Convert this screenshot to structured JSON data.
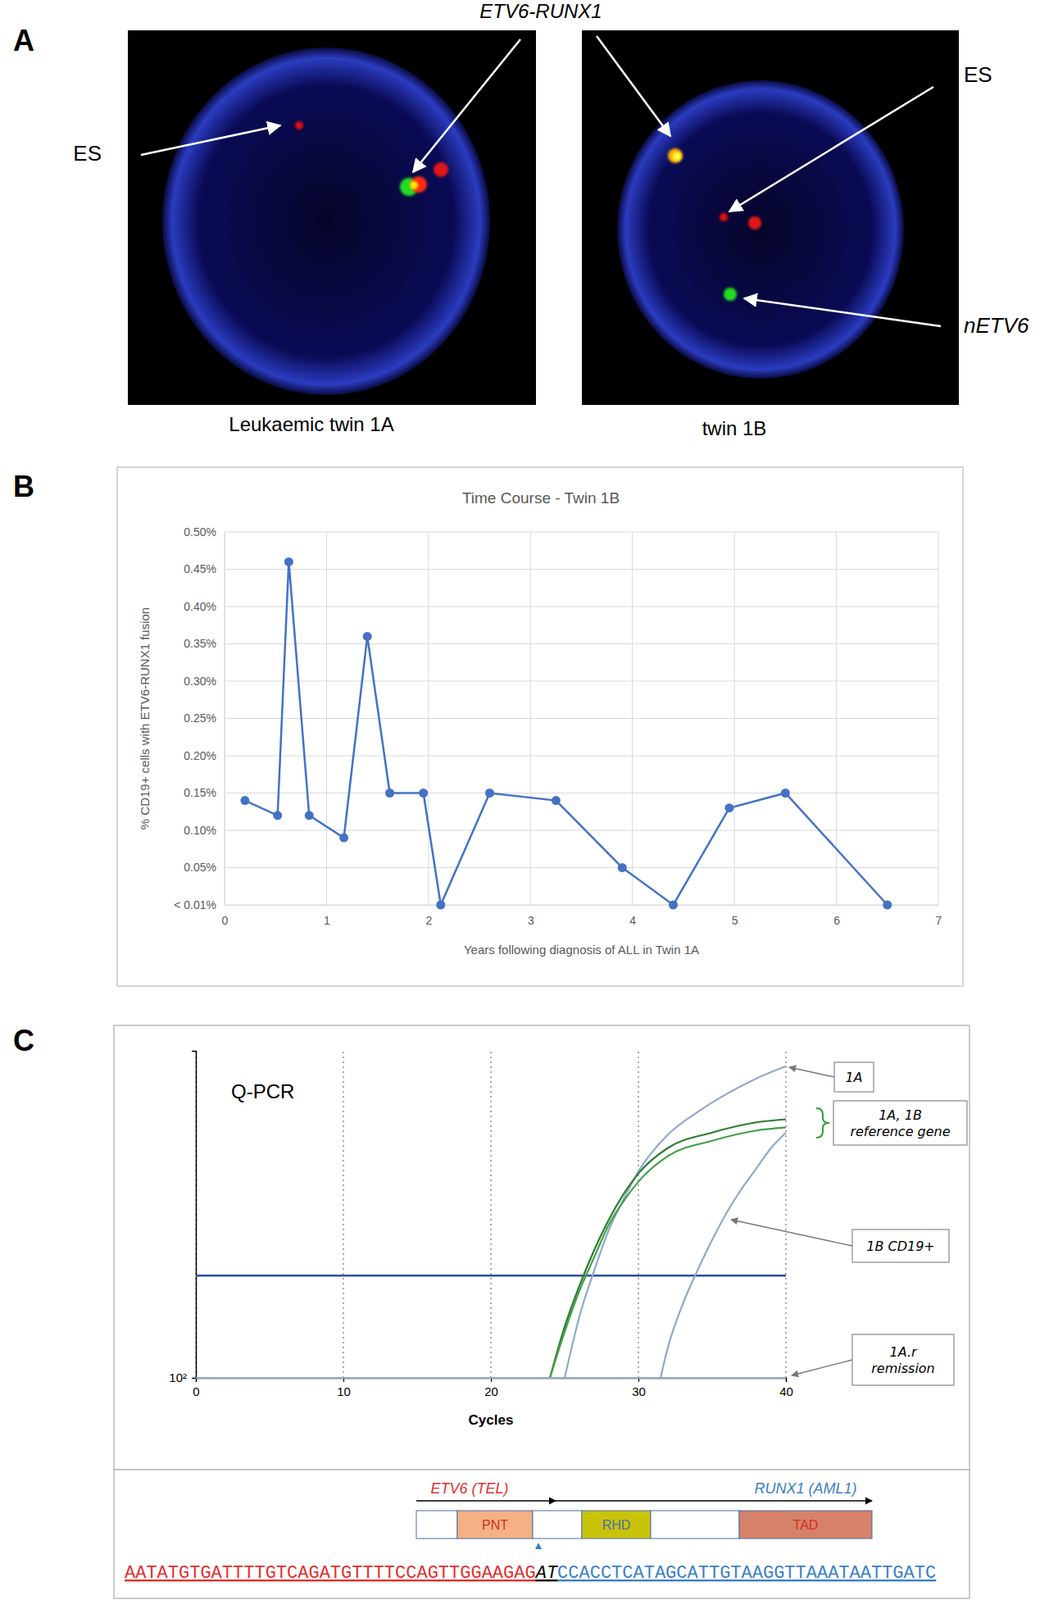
{
  "panel_labels": [
    "A",
    "B",
    "C"
  ],
  "panel_a": {
    "title": "ETV6-RUNX1",
    "images": [
      {
        "caption": "Leukaemic twin 1A",
        "labels": [
          "ES"
        ]
      },
      {
        "caption": "twin 1B",
        "labels": [
          "ES",
          "nETV6"
        ]
      }
    ]
  },
  "chart_data": [
    {
      "type": "line",
      "title": "Time Course - Twin 1B",
      "x_label": "Years following diagnosis of ALL in Twin 1A",
      "y_label": "% CD19+ cells with ETV6-RUNX1 fusion",
      "x": [
        0.2,
        0.52,
        0.63,
        0.83,
        1.17,
        1.4,
        1.62,
        1.95,
        2.12,
        2.6,
        3.25,
        3.9,
        4.4,
        4.95,
        5.5,
        6.5
      ],
      "values": [
        0.14,
        0.12,
        0.46,
        0.12,
        0.09,
        0.36,
        0.15,
        0.15,
        0,
        0.15,
        0.14,
        0.05,
        0,
        0.13,
        0.15,
        0
      ],
      "color": "#4472c4",
      "marker": "circle",
      "grid": true,
      "xlim": [
        0,
        7
      ],
      "xticks": [
        0,
        1,
        2,
        3,
        4,
        5,
        6,
        7
      ],
      "ylim": [
        0,
        0.5
      ],
      "yticks": [
        {
          "value": 0,
          "label": "< 0.01%"
        },
        {
          "value": 0.05,
          "label": "0.05%"
        },
        {
          "value": 0.1,
          "label": "0.10%"
        },
        {
          "value": 0.15,
          "label": "0.15%"
        },
        {
          "value": 0.2,
          "label": "0.20%"
        },
        {
          "value": 0.25,
          "label": "0.25%"
        },
        {
          "value": 0.3,
          "label": "0.30%"
        },
        {
          "value": 0.35,
          "label": "0.35%"
        },
        {
          "value": 0.4,
          "label": "0.40%"
        },
        {
          "value": 0.45,
          "label": "0.45%"
        },
        {
          "value": 0.5,
          "label": "0.50%"
        }
      ]
    },
    {
      "type": "line",
      "title": "Q-PCR",
      "x_label": "Cycles",
      "log": "y",
      "grid": "x",
      "xlim": [
        0,
        40
      ],
      "xticks": [
        0,
        10,
        20,
        30,
        40
      ],
      "ylim": [
        100,
        100000
      ],
      "yticks": [
        {
          "value": 100,
          "label": "10²"
        }
      ],
      "threshold": 866,
      "annotations": [
        "1A",
        "1A, 1B reference gene",
        "1B CD19+",
        "1A.r remission"
      ],
      "series": [
        {
          "color": "#8fa9cc",
          "x": [
            25,
            26,
            27,
            28,
            29,
            30,
            32,
            34,
            36,
            38,
            40
          ],
          "values": [
            100,
            365,
            964,
            2287,
            4371,
            7826,
            17022,
            27380,
            40370,
            55850,
            72300
          ]
        },
        {
          "color": "#2e7d32",
          "x": [
            24,
            25,
            26,
            27,
            28,
            29,
            30,
            32,
            35,
            38,
            40
          ],
          "values": [
            100,
            294,
            698,
            1484,
            2837,
            4870,
            7499,
            12856,
            17783,
            22070,
            23560
          ]
        },
        {
          "color": "#43a047",
          "x": [
            24,
            25,
            26,
            27,
            28,
            29,
            30,
            32,
            35,
            38,
            40
          ],
          "values": [
            100,
            264,
            627,
            1277,
            2548,
            4185,
            6310,
            10826,
            14962,
            18566,
            19830
          ]
        },
        {
          "color": "#8fa9cc",
          "x": [
            31.5,
            32,
            33,
            34,
            35,
            36,
            37,
            38,
            39,
            40
          ],
          "values": [
            100,
            191,
            473,
            964,
            1843,
            3302,
            5422,
            8356,
            12856,
            17783
          ]
        },
        {
          "color": "#8fa9cc",
          "x": [
            0,
            40
          ],
          "values": [
            100,
            100
          ]
        }
      ]
    }
  ],
  "schematic": {
    "genes": [
      "ETV6 (TEL)",
      "RUNX1 (AML1)"
    ],
    "domains": [
      "PNT",
      "RHD",
      "TAD"
    ],
    "sequence": [
      "AATATGTGATTTTGTCAGATGTTTTCCAGTTGGAAGAG",
      "AT",
      "CCACCTCATAGCATTGTAAGGTTAAATAATTGATC"
    ]
  }
}
